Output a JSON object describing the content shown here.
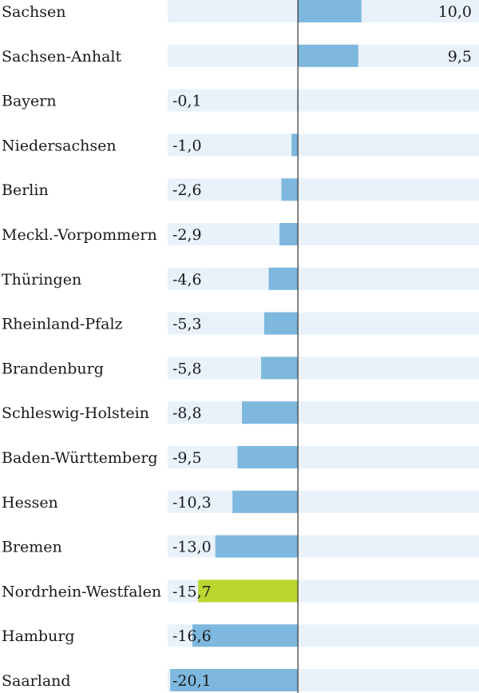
{
  "chart_data": {
    "type": "bar",
    "orientation": "horizontal",
    "categories": [
      "Sachsen",
      "Sachsen-Anhalt",
      "Bayern",
      "Niedersachsen",
      "Berlin",
      "Meckl.-Vorpommern",
      "Thüringen",
      "Rheinland-Pfalz",
      "Brandenburg",
      "Schleswig-Holstein",
      "Baden-Württemberg",
      "Hessen",
      "Bremen",
      "Nordrhein-Westfalen",
      "Hamburg",
      "Saarland"
    ],
    "values": [
      10.0,
      9.5,
      -0.1,
      -1.0,
      -2.6,
      -2.9,
      -4.6,
      -5.3,
      -5.8,
      -8.8,
      -9.5,
      -10.3,
      -13.0,
      -15.7,
      -16.6,
      -20.1
    ],
    "value_labels": [
      "10,0",
      "9,5",
      "-0,1",
      "-1,0",
      "-2,6",
      "-2,9",
      "-4,6",
      "-5,3",
      "-5,8",
      "-8,8",
      "-9,5",
      "-10,3",
      "-13,0",
      "-15,7",
      "-16,6",
      "-20,1"
    ],
    "highlight_category": "Nordrhein-Westfalen",
    "xlim": [
      -20.5,
      28.5
    ],
    "grid": false,
    "legend": "none",
    "colors": {
      "bar": "#7fb8df",
      "highlight": "#bcd530",
      "row_band": "#e9f2fb",
      "zero_line": "#333333",
      "text": "#1a1a1a"
    }
  }
}
